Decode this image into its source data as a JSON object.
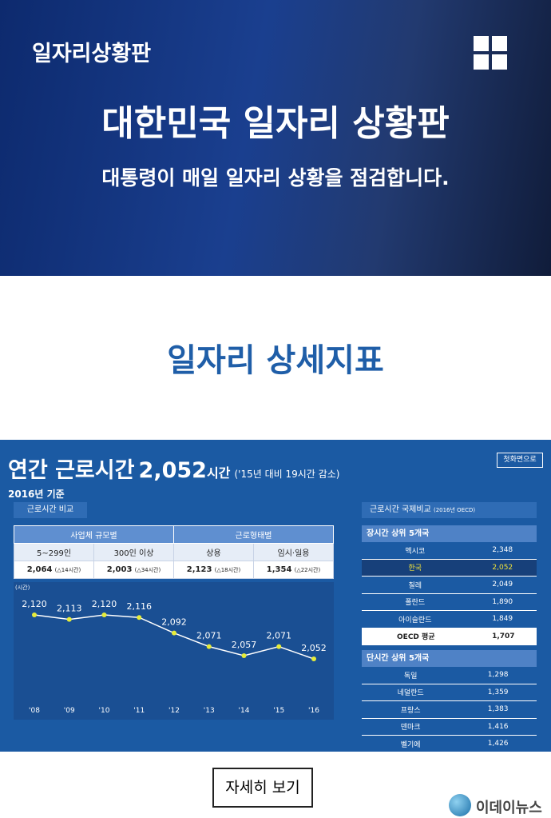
{
  "header": {
    "brand": "일자리상황판",
    "title": "대한민국 일자리 상황판",
    "subtitle": "대통령이 매일 일자리 상황을 점검합니다."
  },
  "section_title": "일자리 상세지표",
  "panel": {
    "title": "연간 근로시간",
    "headline_value": "2,052",
    "headline_unit": "시간",
    "headline_note": "('15년 대비 19시간 감소)",
    "home_button": "첫화면으로",
    "basis": "2016년 기준",
    "compare_label": "근로시간 비교",
    "table": {
      "groups": [
        "사업체 규모별",
        "근로형태별"
      ],
      "columns": [
        "5~299인",
        "300인 이상",
        "상용",
        "임시·일용"
      ],
      "values": [
        "2,064",
        "2,003",
        "2,123",
        "1,354"
      ],
      "changes": [
        "(△14시간)",
        "(△34시간)",
        "(△18시간)",
        "(△22시간)"
      ]
    },
    "intl": {
      "title": "근로시간 국제비교",
      "note": "(2016년 OECD)",
      "long_title": "장시간 상위 5개국",
      "long_rows": [
        [
          "멕시코",
          "2,348"
        ],
        [
          "한국",
          "2,052"
        ],
        [
          "칠레",
          "2,049"
        ],
        [
          "폴란드",
          "1,890"
        ],
        [
          "아이슬란드",
          "1,849"
        ]
      ],
      "oecd": [
        "OECD 평균",
        "1,707"
      ],
      "short_title": "단시간 상위 5개국",
      "short_rows": [
        [
          "독일",
          "1,298"
        ],
        [
          "네덜란드",
          "1,359"
        ],
        [
          "프랑스",
          "1,383"
        ],
        [
          "덴마크",
          "1,416"
        ],
        [
          "벨기에",
          "1,426"
        ]
      ]
    }
  },
  "chart_data": {
    "type": "line",
    "y_label": "(시간)",
    "categories": [
      "'08",
      "'09",
      "'10",
      "'11",
      "'12",
      "'13",
      "'14",
      "'15",
      "'16"
    ],
    "values": [
      2120,
      2113,
      2120,
      2116,
      2092,
      2071,
      2057,
      2071,
      2052
    ],
    "value_labels": [
      "2,120",
      "2,113",
      "2,120",
      "2,116",
      "2,092",
      "2,071",
      "2,057",
      "2,071",
      "2,052"
    ],
    "color": "#ffffff",
    "marker_color": "#e6ec3a"
  },
  "footer": {
    "button": "자세히 보기",
    "logo": "이데이뉴스"
  }
}
